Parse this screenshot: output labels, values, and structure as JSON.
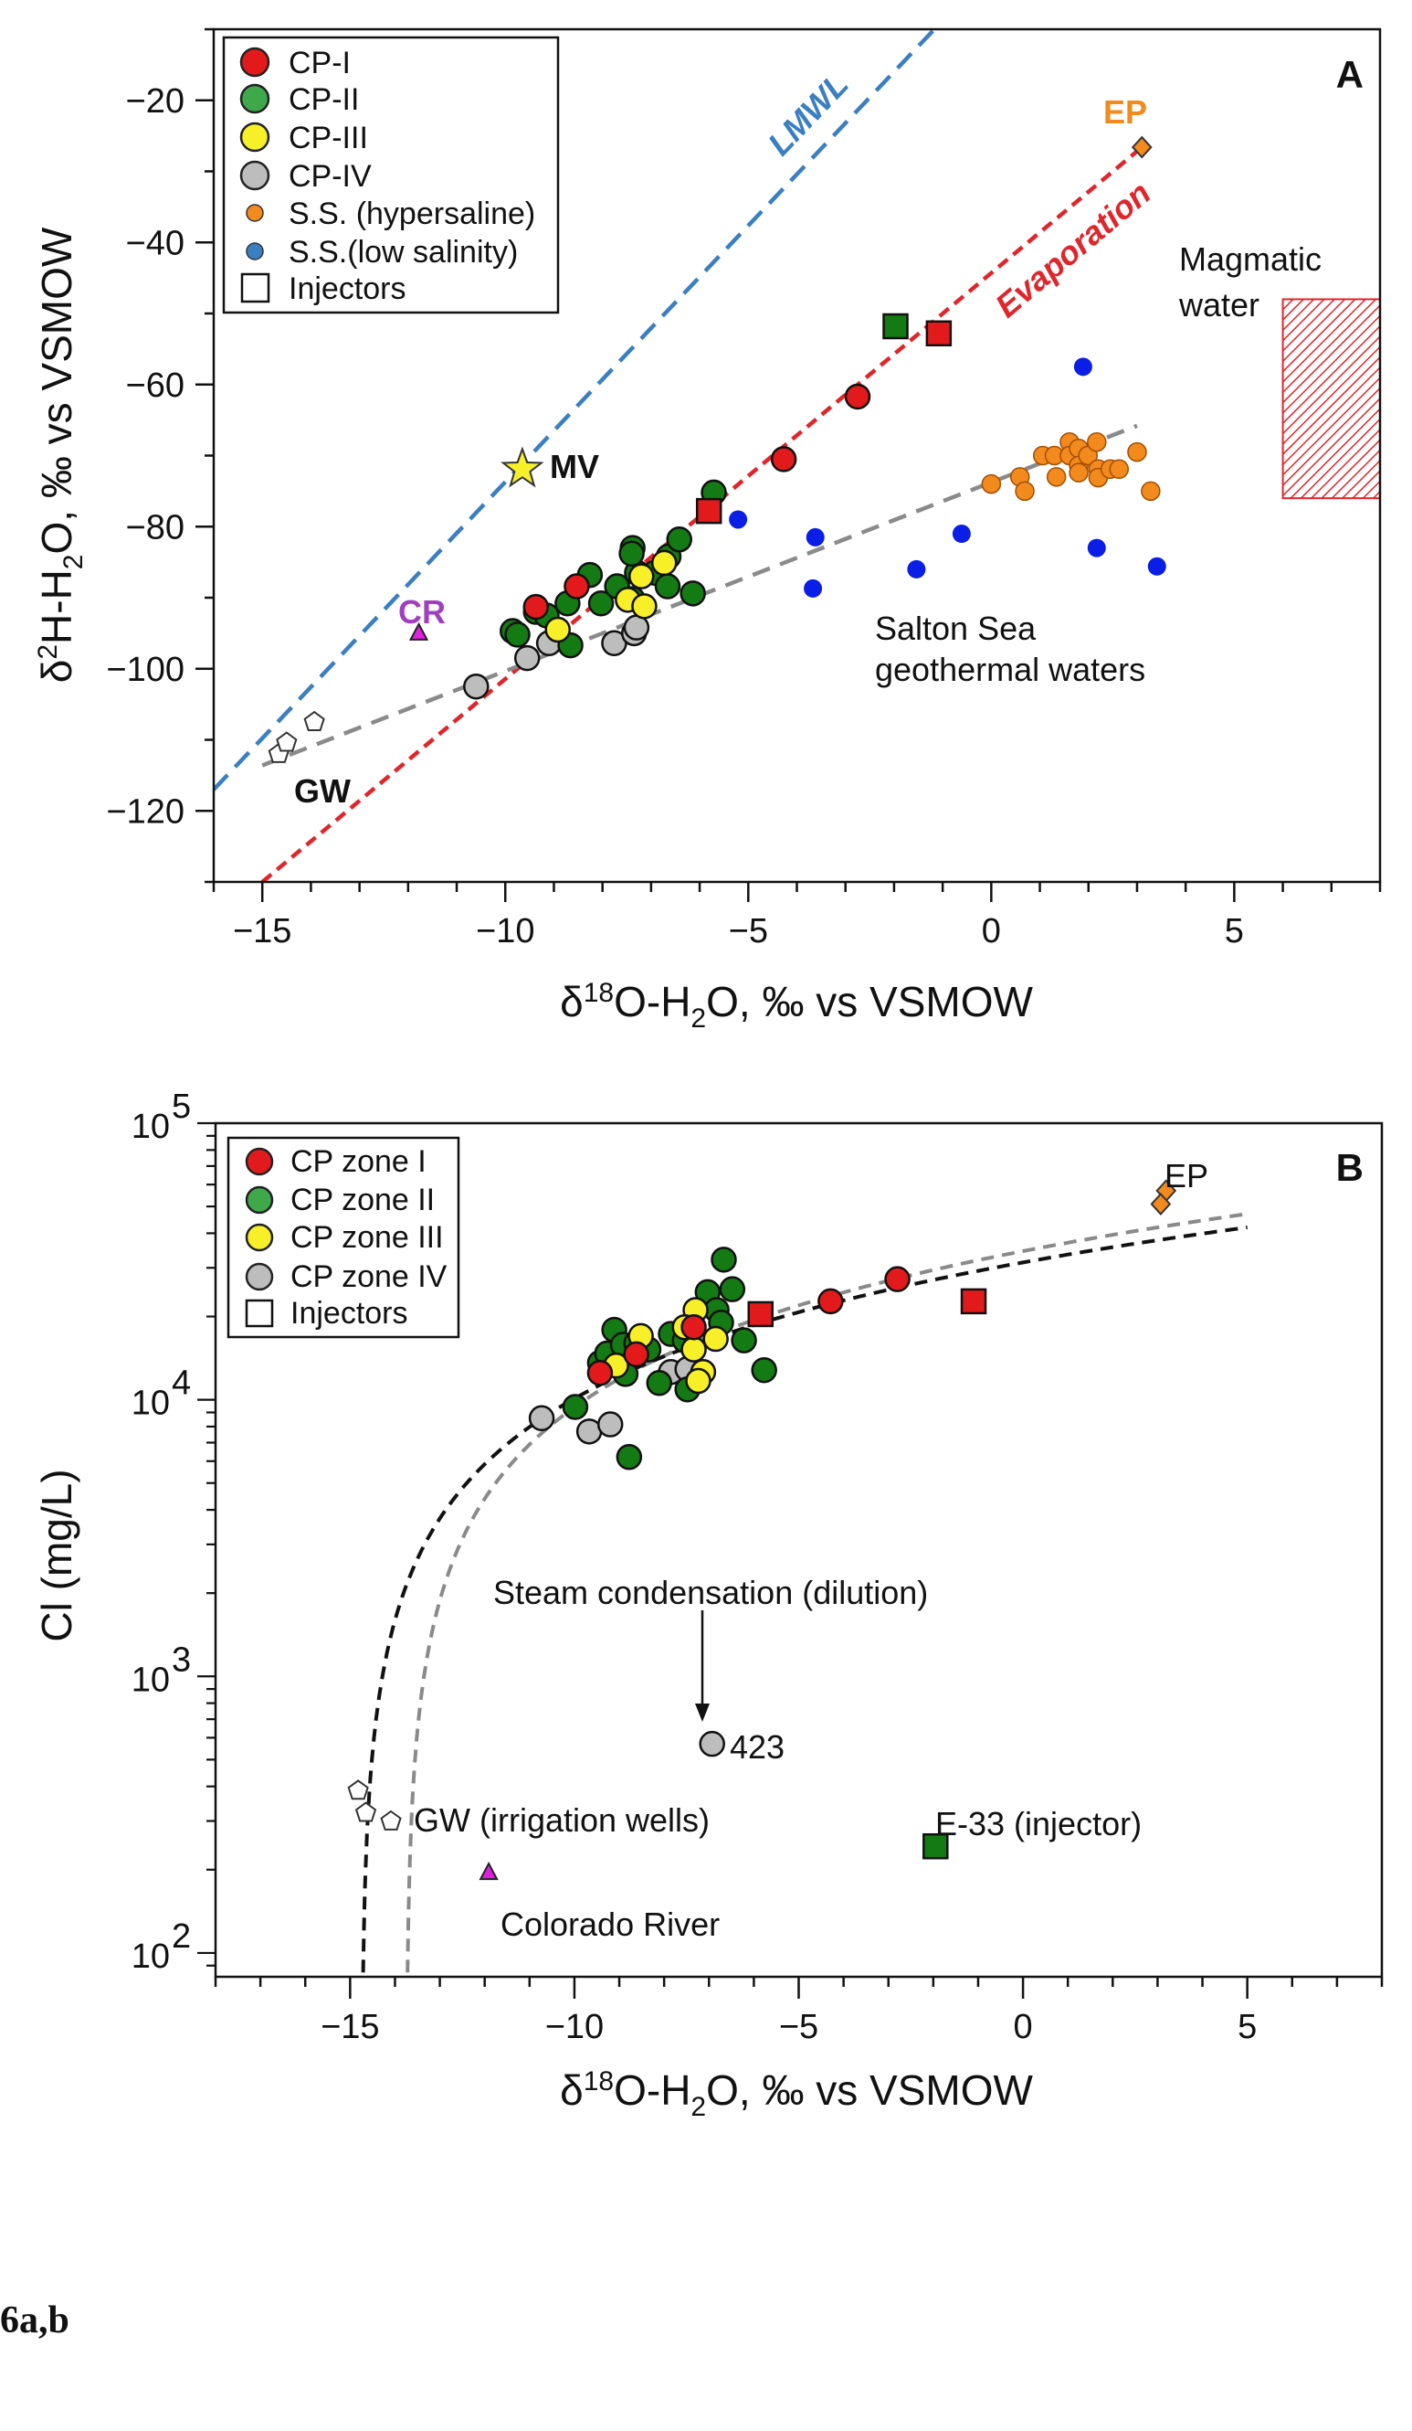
{
  "caption": "6a,b",
  "chart_data": [
    {
      "type": "scatter",
      "panel_label": "A",
      "xlabel": {
        "pre": "δ",
        "sup": "18",
        "mid": "O-H",
        "sub": "2",
        "post": "O, ‰ vs VSMOW"
      },
      "ylabel": {
        "pre": "δ",
        "sup": "2",
        "mid": "H-H",
        "sub": "2",
        "post": "O, ‰ vs VSMOW"
      },
      "xlim": [
        -16,
        8
      ],
      "ylim": [
        -130,
        -10
      ],
      "x_ticks": [
        -15,
        -10,
        -5,
        0,
        5
      ],
      "x_tick_labels": [
        "−15",
        "−10",
        "−5",
        "0",
        "5"
      ],
      "y_ticks": [
        -20,
        -40,
        -60,
        -80,
        -100,
        -120
      ],
      "y_tick_labels": [
        "−20",
        "−40",
        "−60",
        "−80",
        "−100",
        "−120"
      ],
      "grid": false,
      "legend_position": "top-left",
      "legend": [
        {
          "label": "CP-I",
          "marker": "circle",
          "color": "#e31a1c"
        },
        {
          "label": "CP-II",
          "marker": "circle",
          "color": "#3fa84a"
        },
        {
          "label": "CP-III",
          "marker": "circle",
          "color": "#f7ef28"
        },
        {
          "label": "CP-IV",
          "marker": "circle",
          "color": "#bdbdbd"
        },
        {
          "label": "S.S. (hypersaline)",
          "marker": "small-circle",
          "color": "#f28a1e"
        },
        {
          "label": "S.S.(low salinity)",
          "marker": "small-circle",
          "color": "#3a7fc1"
        },
        {
          "label": "Injectors",
          "marker": "square",
          "color": "#ffffff"
        }
      ],
      "lines": [
        {
          "label": "LMWL",
          "color": "#3a7fc1",
          "points": [
            [
              -16,
              -117
            ],
            [
              -1.17,
              -10
            ]
          ]
        },
        {
          "label": "Evaporation",
          "color": "#e0262b",
          "points": [
            [
              -15,
              -130
            ],
            [
              3.1,
              -26.6
            ]
          ]
        },
        {
          "label": "",
          "color": "#8a8a8a",
          "points": [
            [
              -15,
              -113.6
            ],
            [
              3.0,
              -65.8
            ]
          ]
        }
      ],
      "region": {
        "label_lines": [
          "Magmatic",
          "water"
        ],
        "x": [
          6,
          8
        ],
        "y": [
          -76,
          -48
        ],
        "color": "#e0262b"
      },
      "series": [
        {
          "name": "CP-IV",
          "marker": "circle",
          "color": "#bdbdbd",
          "points": [
            [
              -10.6,
              -102.5
            ],
            [
              -9.55,
              -98.5
            ],
            [
              -9.1,
              -96.4
            ],
            [
              -7.76,
              -96.4
            ],
            [
              -7.35,
              -95
            ],
            [
              -7.3,
              -94.2
            ]
          ]
        },
        {
          "name": "CP-II",
          "marker": "circle",
          "color": "#147a14",
          "points": [
            [
              -9.85,
              -94.7
            ],
            [
              -9.75,
              -95.2
            ],
            [
              -9.37,
              -92
            ],
            [
              -9.15,
              -92.5
            ],
            [
              -8.72,
              -90.8
            ],
            [
              -8.66,
              -96.7
            ],
            [
              -8.26,
              -86.8
            ],
            [
              -8.03,
              -90.8
            ],
            [
              -7.7,
              -88.4
            ],
            [
              -7.38,
              -83
            ],
            [
              -7.38,
              -90.2
            ],
            [
              -7.29,
              -86.5
            ],
            [
              -6.92,
              -86.5
            ],
            [
              -6.64,
              -84.2
            ],
            [
              -6.66,
              -88.4
            ],
            [
              -6.42,
              -81.8
            ],
            [
              -6.14,
              -89.4
            ],
            [
              -5.71,
              -75.2
            ],
            [
              -7.4,
              -83.8
            ]
          ]
        },
        {
          "name": "CP-III",
          "marker": "circle",
          "color": "#f7ef28",
          "points": [
            [
              -8.92,
              -94.5
            ],
            [
              -7.48,
              -90.3
            ],
            [
              -7.14,
              -91.2
            ],
            [
              -7.2,
              -87
            ],
            [
              -6.73,
              -85.1
            ]
          ]
        },
        {
          "name": "CP-I",
          "marker": "circle",
          "color": "#e31a1c",
          "points": [
            [
              -2.75,
              -61.7
            ],
            [
              -4.27,
              -70.5
            ],
            [
              -8.53,
              -88.4
            ],
            [
              -9.37,
              -91.3
            ]
          ]
        },
        {
          "name": "S.S. (hypersaline)",
          "marker": "small-circle",
          "color": "#f28a1e",
          "points": [
            [
              0,
              -74
            ],
            [
              0.59,
              -73
            ],
            [
              0.69,
              -75
            ],
            [
              1.06,
              -70
            ],
            [
              1.3,
              -70
            ],
            [
              1.34,
              -73
            ],
            [
              1.61,
              -68.1
            ],
            [
              1.61,
              -70
            ],
            [
              1.8,
              -69
            ],
            [
              1.8,
              -71.4
            ],
            [
              1.8,
              -72.4
            ],
            [
              1.99,
              -70
            ],
            [
              2.17,
              -68.1
            ],
            [
              2.2,
              -71.9
            ],
            [
              2.2,
              -73.1
            ],
            [
              2.45,
              -71.9
            ],
            [
              2.63,
              -71.9
            ],
            [
              3.0,
              -69.5
            ],
            [
              3.28,
              -75
            ]
          ]
        },
        {
          "name": "S.S.(low salinity)",
          "marker": "small-circle",
          "color": "#0a1ee6",
          "points": [
            [
              1.89,
              -57.5
            ],
            [
              -5.21,
              -79
            ],
            [
              -3.62,
              -81.5
            ],
            [
              -3.67,
              -88.7
            ],
            [
              -1.54,
              -86
            ],
            [
              -0.61,
              -81
            ],
            [
              2.17,
              -83
            ],
            [
              3.41,
              -85.6
            ]
          ]
        },
        {
          "name": "Injectors",
          "marker": "square",
          "color": "#e31a1c",
          "points": [
            [
              -1.08,
              -52.8
            ],
            [
              -5.81,
              -77.8
            ]
          ]
        },
        {
          "name": "Injectors",
          "marker": "square",
          "color": "#147a14",
          "points": [
            [
              -1.97,
              -51.8
            ]
          ]
        }
      ],
      "special_points": [
        {
          "label": "EP",
          "marker": "diamond",
          "color": "#f28a1e",
          "label_color": "#f28a1e",
          "points": [
            [
              3.1,
              -26.6
            ]
          ]
        },
        {
          "label": "MV",
          "marker": "star",
          "color": "#f7ef28",
          "label_color": "#111111",
          "points": [
            [
              -9.65,
              -71.9
            ]
          ]
        },
        {
          "label": "CR",
          "marker": "triangle",
          "color": "#e020e0",
          "label_color": "#a040c0",
          "points": [
            [
              -11.78,
              -95
            ]
          ]
        },
        {
          "label": "GW",
          "marker": "pentagon",
          "color": "#ffffff",
          "label_color": "#111111",
          "points": [
            [
              -14.66,
              -112
            ],
            [
              -14.5,
              -110.4
            ],
            [
              -13.93,
              -107.5
            ]
          ]
        }
      ],
      "annotations": [
        {
          "lines": [
            "Salton Sea",
            "geothermal waters"
          ]
        }
      ]
    },
    {
      "type": "scatter",
      "panel_label": "B",
      "xlabel": {
        "pre": "δ",
        "sup": "18",
        "mid": "O-H",
        "sub": "2",
        "post": "O, ‰ vs VSMOW"
      },
      "ylabel": "Cl (mg/L)",
      "xlim": [
        -18,
        8
      ],
      "ylim": [
        82,
        100000
      ],
      "y_scale": "log",
      "x_ticks": [
        -15,
        -10,
        -5,
        0,
        5
      ],
      "x_tick_labels": [
        "−15",
        "−10",
        "−5",
        "0",
        "5"
      ],
      "y_ticks": [
        100,
        1000,
        10000,
        100000
      ],
      "y_tick_labels": [
        {
          "base": "10",
          "exp": "2"
        },
        {
          "base": "10",
          "exp": "3"
        },
        {
          "base": "10",
          "exp": "4"
        },
        {
          "base": "10",
          "exp": "5"
        }
      ],
      "grid": false,
      "legend_position": "top-left",
      "legend": [
        {
          "label": "CP zone I",
          "marker": "circle",
          "color": "#e31a1c"
        },
        {
          "label": "CP zone II",
          "marker": "circle",
          "color": "#3fa84a"
        },
        {
          "label": "CP zone III",
          "marker": "circle",
          "color": "#f7ef28"
        },
        {
          "label": "CP zone IV",
          "marker": "circle",
          "color": "#bdbdbd"
        },
        {
          "label": "Injectors",
          "marker": "square",
          "color": "#ffffff"
        }
      ],
      "curves": [
        {
          "color": "#8a8a8a",
          "points": [
            [
              -13.72,
              85
            ],
            [
              -13,
              1880
            ],
            [
              -12,
              4387
            ],
            [
              -10,
              9401
            ],
            [
              -5,
              21936
            ],
            [
              0,
              34471
            ],
            [
              5,
              47006
            ]
          ]
        },
        {
          "color": "#111111",
          "points": [
            [
              -14.71,
              85
            ],
            [
              -14,
              1595
            ],
            [
              -12,
              5849
            ],
            [
              -10,
              10103
            ],
            [
              -5,
              20738
            ],
            [
              0,
              31373
            ],
            [
              5,
              42008
            ]
          ]
        }
      ],
      "series": [
        {
          "name": "CP zone IV",
          "marker": "circle",
          "color": "#bdbdbd",
          "points": [
            [
              -10.73,
              8580
            ],
            [
              -9.67,
              7680
            ],
            [
              -9.2,
              8150
            ],
            [
              -7.85,
              12600
            ],
            [
              -7.48,
              12900
            ],
            [
              -6.93,
              570
            ]
          ]
        },
        {
          "name": "CP zone II",
          "marker": "circle",
          "color": "#147a14",
          "points": [
            [
              -9.98,
              9420
            ],
            [
              -8.78,
              6210
            ],
            [
              -9.11,
              17900
            ],
            [
              -9.43,
              13600
            ],
            [
              -9.27,
              14700
            ],
            [
              -8.92,
              15800
            ],
            [
              -8.62,
              16000
            ],
            [
              -8.35,
              15200
            ],
            [
              -7.85,
              17300
            ],
            [
              -8.11,
              11500
            ],
            [
              -7.48,
              10900
            ],
            [
              -7.03,
              24500
            ],
            [
              -6.67,
              32100
            ],
            [
              -6.48,
              25100
            ],
            [
              -6.83,
              21100
            ],
            [
              -6.73,
              19000
            ],
            [
              -6.22,
              16400
            ],
            [
              -5.77,
              12800
            ],
            [
              -8.86,
              12400
            ],
            [
              -7.54,
              16400
            ]
          ]
        },
        {
          "name": "CP zone III",
          "marker": "circle",
          "color": "#f7ef28",
          "points": [
            [
              -7.3,
              21100
            ],
            [
              -8.52,
              17000
            ],
            [
              -9.07,
              13300
            ],
            [
              -7.54,
              18300
            ],
            [
              -6.85,
              16600
            ],
            [
              -7.34,
              15200
            ],
            [
              -7.13,
              12600
            ],
            [
              -7.24,
              11700
            ]
          ]
        },
        {
          "name": "CP zone I",
          "marker": "circle",
          "color": "#e31a1c",
          "points": [
            [
              -2.8,
              27300
            ],
            [
              -4.29,
              22700
            ],
            [
              -9.43,
              12500
            ],
            [
              -8.62,
              14600
            ],
            [
              -7.34,
              18300
            ]
          ]
        },
        {
          "name": "Injectors",
          "marker": "square",
          "color": "#e31a1c",
          "points": [
            [
              -1.1,
              22700
            ],
            [
              -5.85,
              20400
            ]
          ]
        },
        {
          "name": "Injectors",
          "marker": "square",
          "color": "#147a14",
          "points": [
            [
              -1.95,
              243
            ]
          ]
        }
      ],
      "special_points": [
        {
          "label": "EP",
          "marker": "diamond",
          "color": "#f28a1e",
          "points": [
            [
              3.19,
              57000
            ],
            [
              3.07,
              51000
            ]
          ]
        },
        {
          "label": "Colorado River",
          "marker": "triangle",
          "color": "#e020e0",
          "points": [
            [
              -11.91,
              195
            ]
          ]
        },
        {
          "label": "GW (irrigation wells)",
          "marker": "pentagon",
          "color": "#ffffff",
          "points": [
            [
              -14.82,
              386
            ],
            [
              -14.65,
              321
            ],
            [
              -14.09,
              299
            ]
          ]
        }
      ],
      "annotations": [
        {
          "text": "Steam condensation (dilution)"
        },
        {
          "text": "423"
        },
        {
          "text": "E-33 (injector)"
        }
      ]
    }
  ]
}
